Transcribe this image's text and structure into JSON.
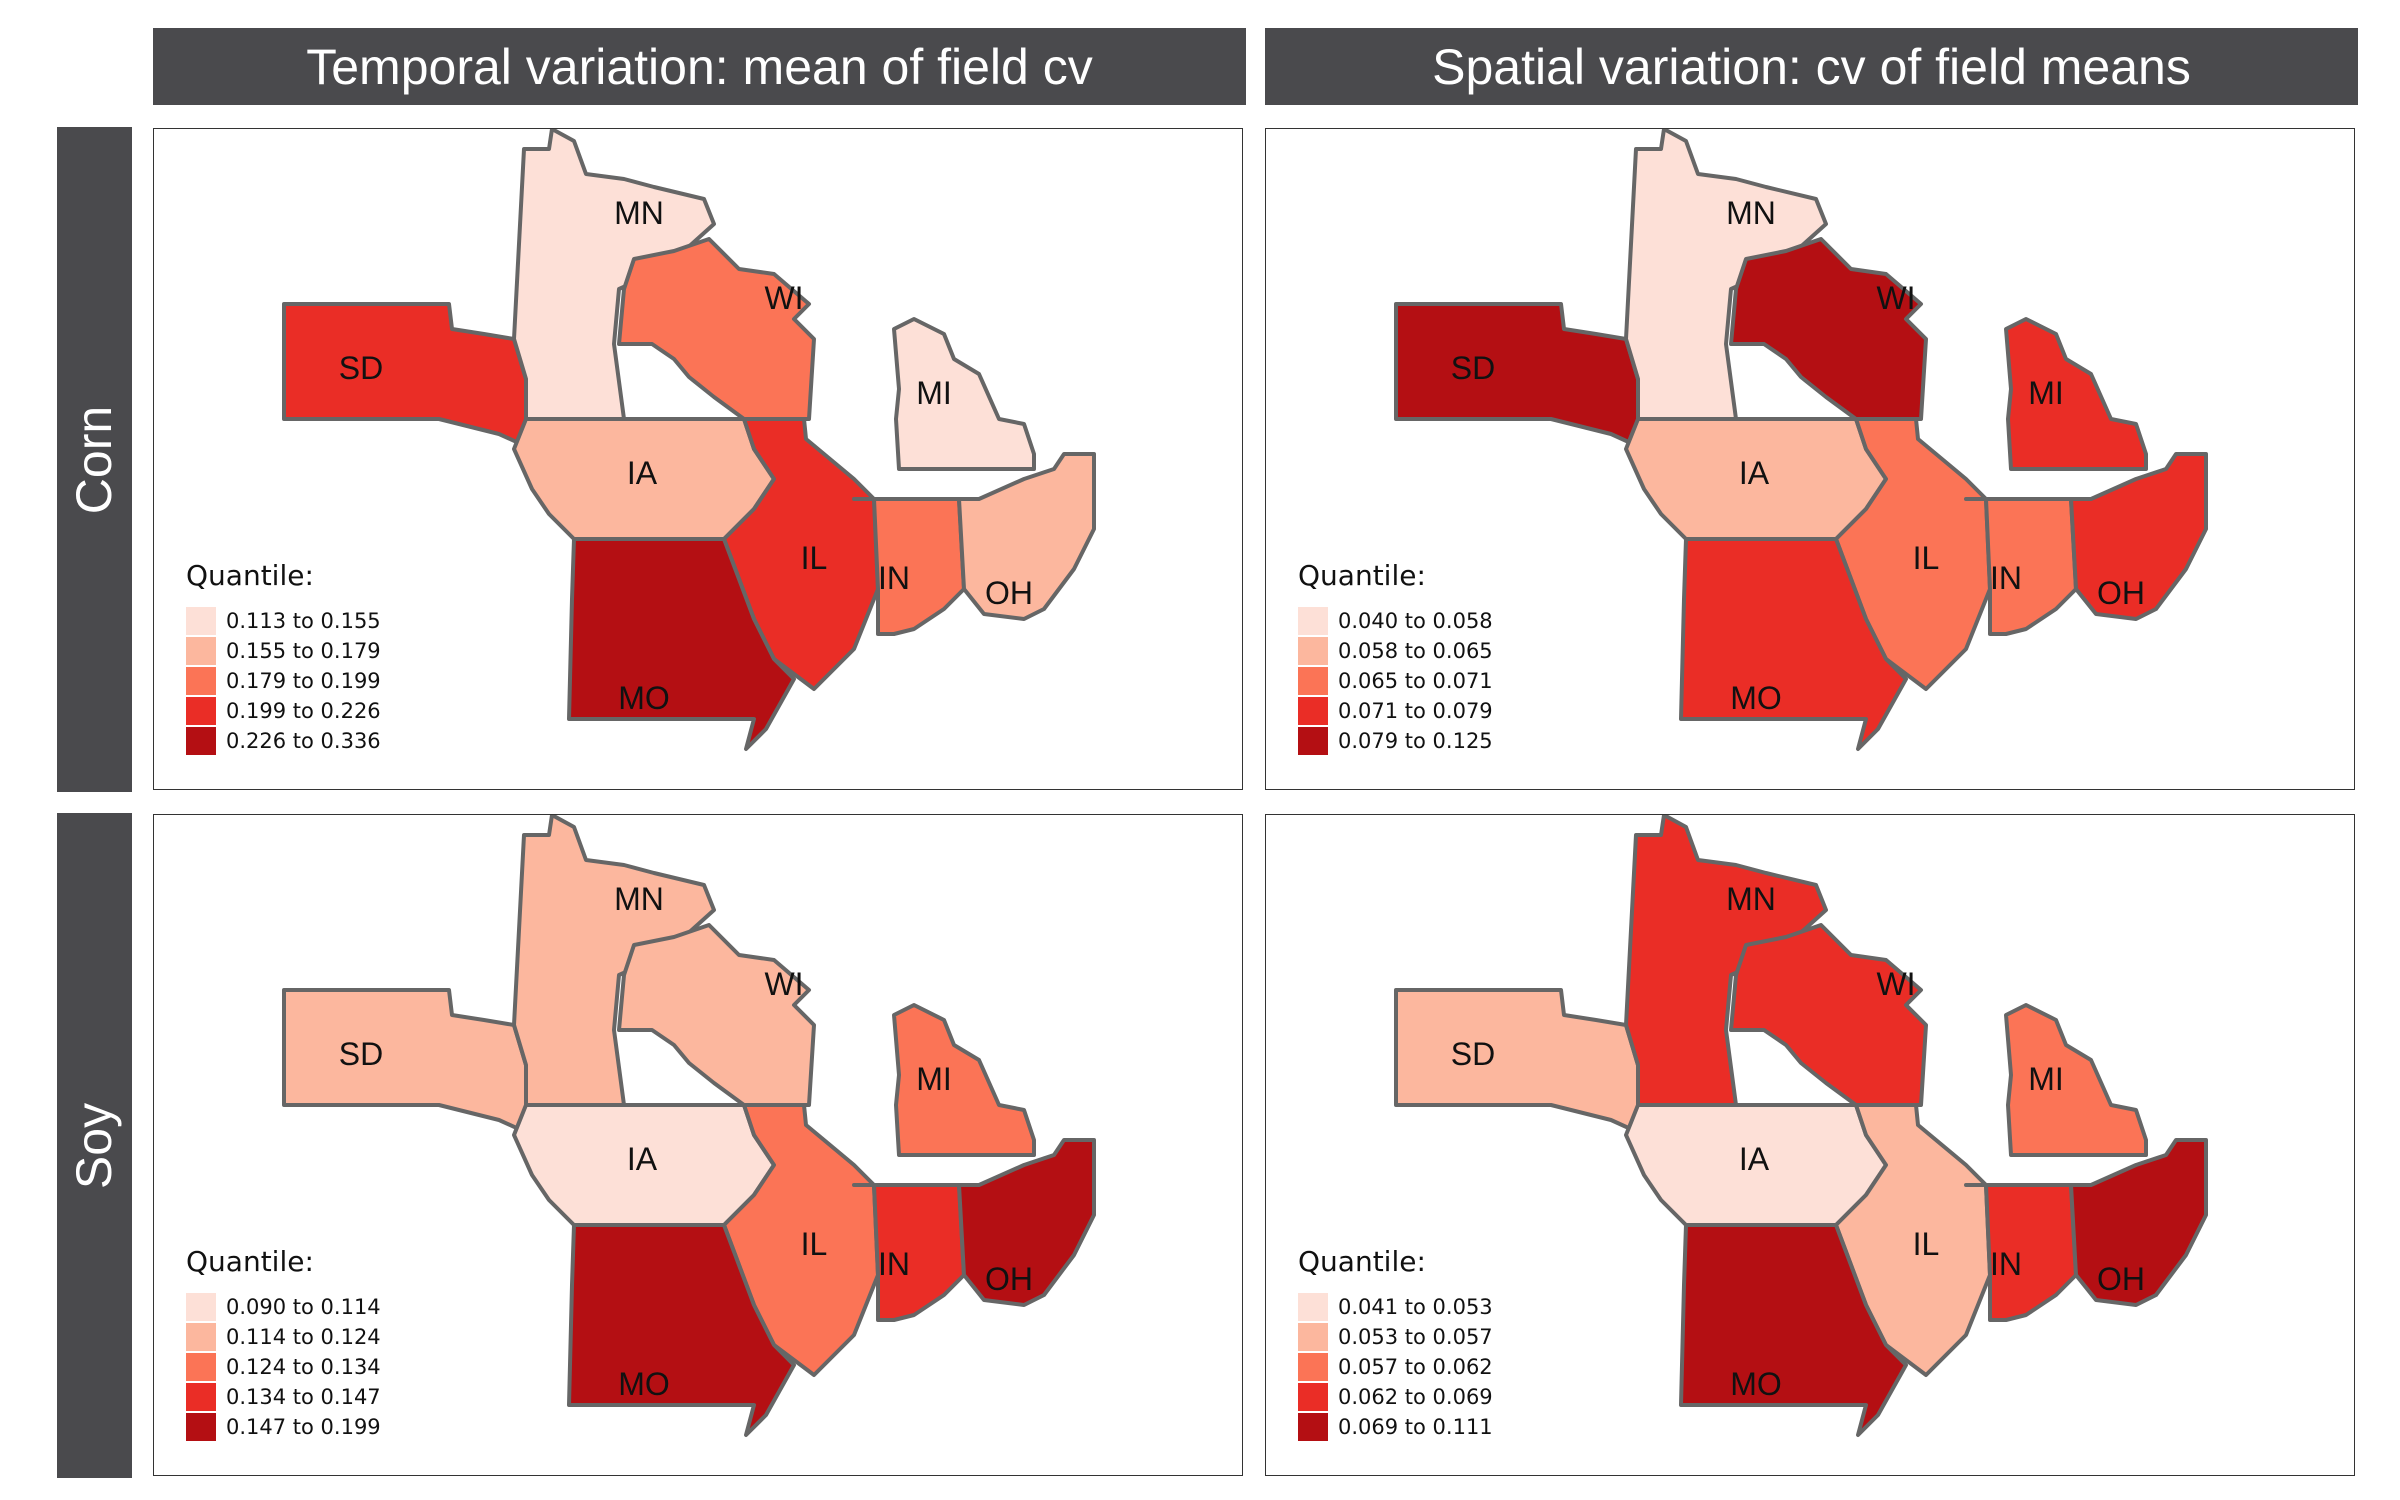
{
  "columns": [
    "Temporal variation: mean of field cv",
    "Spatial variation: cv of field means"
  ],
  "rows": [
    "Corn",
    "Soy"
  ],
  "colors": {
    "strip_bg": "#4a4a4d",
    "state_fill": "#bdbdbd",
    "state_border": "#666666",
    "scale": [
      "#fde0d7",
      "#fcb79e",
      "#fb7456",
      "#ea2d26",
      "#b40f13"
    ]
  },
  "legend_title": "Quantile:",
  "state_labels": [
    "MN",
    "WI",
    "SD",
    "MI",
    "IA",
    "IL",
    "IN",
    "OH",
    "MO"
  ],
  "panels": [
    {
      "id": "corn-temporal",
      "row": "Corn",
      "column": "Temporal variation: mean of field cv",
      "legend": [
        "0.113 to 0.155",
        "0.155 to 0.179",
        "0.179 to 0.199",
        "0.199 to 0.226",
        "0.226 to 0.336"
      ],
      "state_quantiles": {
        "SD": 4,
        "MN": 1,
        "WI": 3,
        "MI": 1,
        "IA": 2,
        "IL": 4,
        "IN": 3,
        "OH": 2,
        "MO": 5
      }
    },
    {
      "id": "corn-spatial",
      "row": "Corn",
      "column": "Spatial variation: cv of field means",
      "legend": [
        "0.040 to 0.058",
        "0.058 to 0.065",
        "0.065 to 0.071",
        "0.071 to 0.079",
        "0.079 to 0.125"
      ],
      "state_quantiles": {
        "SD": 5,
        "MN": 1,
        "WI": 5,
        "MI": 4,
        "IA": 2,
        "IL": 3,
        "IN": 3,
        "OH": 4,
        "MO": 4
      }
    },
    {
      "id": "soy-temporal",
      "row": "Soy",
      "column": "Temporal variation: mean of field cv",
      "legend": [
        "0.090 to 0.114",
        "0.114 to 0.124",
        "0.124 to 0.134",
        "0.134 to 0.147",
        "0.147 to 0.199"
      ],
      "state_quantiles": {
        "SD": 2,
        "MN": 2,
        "WI": 2,
        "MI": 3,
        "IA": 1,
        "IL": 3,
        "IN": 4,
        "OH": 5,
        "MO": 5
      }
    },
    {
      "id": "soy-spatial",
      "row": "Soy",
      "column": "Spatial variation: cv of field means",
      "legend": [
        "0.041 to 0.053",
        "0.053 to 0.057",
        "0.057 to 0.062",
        "0.062 to 0.069",
        "0.069 to 0.111"
      ],
      "state_quantiles": {
        "SD": 2,
        "MN": 4,
        "WI": 4,
        "MI": 3,
        "IA": 1,
        "IL": 2,
        "IN": 4,
        "OH": 5,
        "MO": 5
      }
    }
  ]
}
